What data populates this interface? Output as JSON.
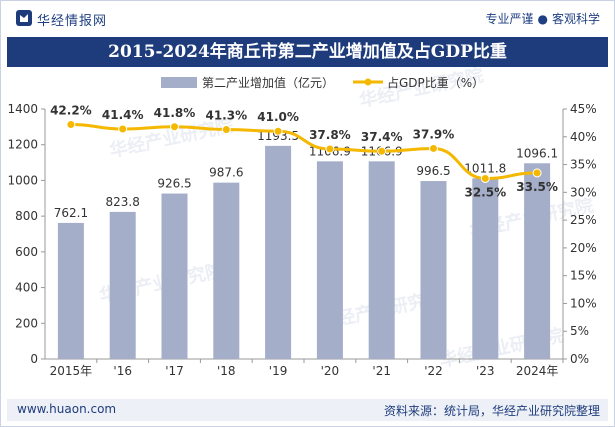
{
  "header": {
    "brand": "华经情报网",
    "tag1": "专业严谨",
    "tag2": "客观科学",
    "title": "2015-2024年商丘市第二产业增加值及占GDP比重"
  },
  "footer": {
    "url": "www.huaon.com",
    "source": "资料来源：统计局，华经产业研究院整理"
  },
  "watermark": "华经产业研究院",
  "colors": {
    "bar": "#a4aec9",
    "line": "#f5b800",
    "title_bg": "#1e3c7c",
    "text": "#333333"
  },
  "chart_data": {
    "type": "bar",
    "title": "2015-2024年商丘市第二产业增加值及占GDP比重",
    "categories": [
      "2015年",
      "'16",
      "'17",
      "'18",
      "'19",
      "'20",
      "'21",
      "'22",
      "'23",
      "2024年"
    ],
    "series": [
      {
        "name": "第二产业增加值（亿元）",
        "type": "bar",
        "axis": "left",
        "values": [
          762.1,
          823.8,
          926.5,
          987.6,
          1193.5,
          1106.9,
          1106.9,
          996.5,
          1011.8,
          1096.1
        ],
        "labels": [
          "762.1",
          "823.8",
          "926.5",
          "987.6",
          "1193.5",
          "1106.9",
          "1106.9",
          "996.5",
          "1011.8",
          "1096.1"
        ]
      },
      {
        "name": "占GDP比重（%）",
        "type": "line",
        "axis": "right",
        "values": [
          42.2,
          41.4,
          41.8,
          41.3,
          41.0,
          37.8,
          37.4,
          37.9,
          32.5,
          33.5
        ],
        "labels": [
          "42.2%",
          "41.4%",
          "41.8%",
          "41.3%",
          "41.0%",
          "37.8%",
          "37.4%",
          "37.9%",
          "32.5%",
          "33.5%"
        ]
      }
    ],
    "y_left": {
      "min": 0,
      "max": 1400,
      "ticks": [
        0,
        200,
        400,
        600,
        800,
        1000,
        1200,
        1400
      ],
      "tick_labels": [
        "0",
        "200",
        "400",
        "600",
        "800",
        "1000",
        "1200",
        "1400"
      ]
    },
    "y_right": {
      "min": 0,
      "max": 45,
      "ticks": [
        0,
        5,
        10,
        15,
        20,
        25,
        30,
        35,
        40,
        45
      ],
      "tick_labels": [
        "0%",
        "5%",
        "10%",
        "15%",
        "20%",
        "25%",
        "30%",
        "35%",
        "40%",
        "45%"
      ]
    },
    "legend_position": "top",
    "grid": false
  }
}
